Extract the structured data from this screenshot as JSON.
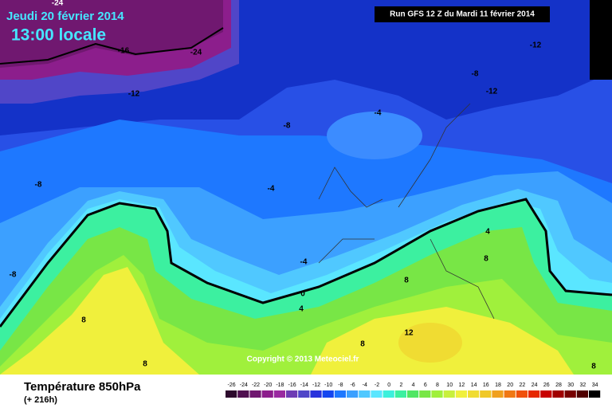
{
  "header": {
    "date": "Jeudi 20 février 2014",
    "time": "13:00 locale",
    "run": "Run GFS 12 Z du Mardi 11 février 2014"
  },
  "map": {
    "contour_labels": [
      -24,
      -24,
      -16,
      -12,
      -12,
      -8,
      -12,
      -4,
      -8,
      -8,
      -4,
      -4,
      -8,
      0,
      4,
      8,
      8,
      8,
      8,
      12,
      8,
      4,
      8
    ],
    "copyright": "Copyright © 2013 Meteociel.fr"
  },
  "footer": {
    "title": "Température 850hPa",
    "subtitle": "(+ 216h)"
  },
  "legend": {
    "values": [
      -26,
      -24,
      -22,
      -20,
      -18,
      -16,
      -14,
      -12,
      -10,
      -8,
      -6,
      -4,
      -2,
      0,
      2,
      4,
      6,
      8,
      10,
      12,
      14,
      16,
      18,
      20,
      22,
      24,
      26,
      28,
      30,
      32,
      34
    ],
    "colors": [
      "#2d0a2d",
      "#501050",
      "#701870",
      "#8c1e8c",
      "#9a2aa0",
      "#6e3cb4",
      "#5046c8",
      "#2832dc",
      "#1446f0",
      "#1e78ff",
      "#3ca0ff",
      "#50c8ff",
      "#5ae6ff",
      "#3cf0dc",
      "#3cf0a0",
      "#50e664",
      "#78e646",
      "#a0f03c",
      "#c8f03c",
      "#f0f03c",
      "#f0dc32",
      "#f0c828",
      "#f0a01e",
      "#f07814",
      "#f0500a",
      "#e62800",
      "#c80000",
      "#a00000",
      "#780000",
      "#500000",
      "#000000"
    ]
  }
}
